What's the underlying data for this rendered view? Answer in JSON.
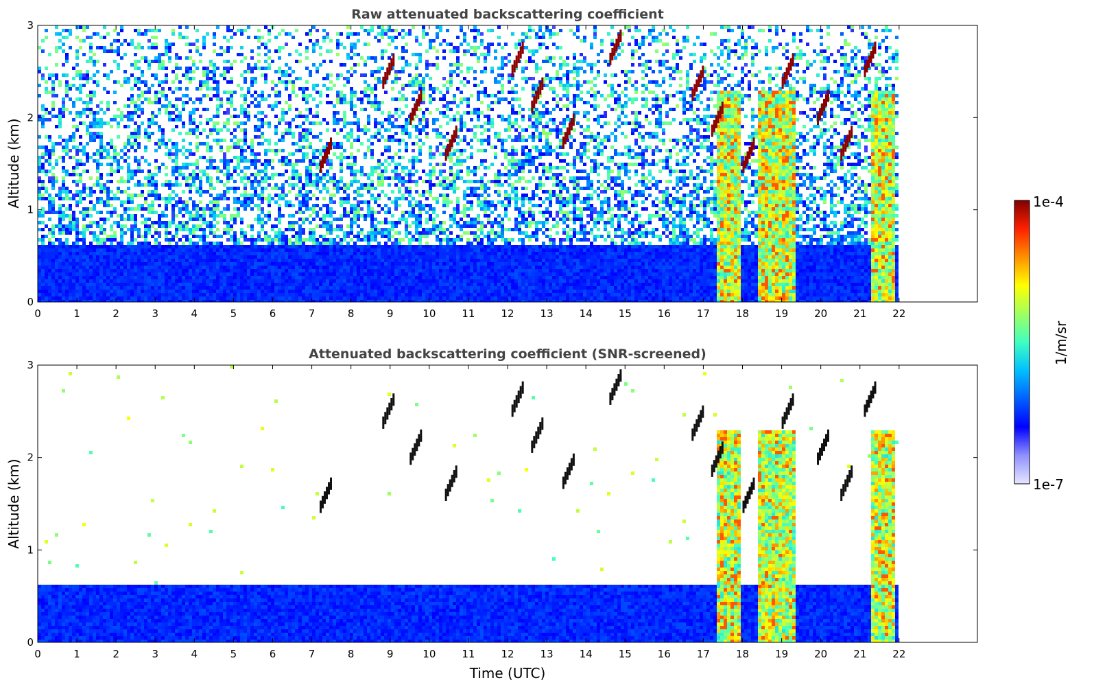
{
  "chart_data": [
    {
      "type": "heatmap",
      "title": "Raw attenuated backscattering coefficient",
      "xlabel": "",
      "ylabel": "Altitude (km)",
      "xlim": [
        0,
        24
      ],
      "ylim": [
        0,
        3
      ],
      "xticks": [
        "0",
        "1",
        "2",
        "3",
        "4",
        "5",
        "6",
        "7",
        "8",
        "9",
        "10",
        "11",
        "12",
        "13",
        "14",
        "15",
        "16",
        "17",
        "18",
        "19",
        "20",
        "21",
        "22"
      ],
      "yticks": [
        "0",
        "1",
        "2",
        "3"
      ],
      "data_end_hour": 21.9,
      "screened": false
    },
    {
      "type": "heatmap",
      "title": "Attenuated backscattering coefficient (SNR-screened)",
      "xlabel": "Time (UTC)",
      "ylabel": "Altitude (km)",
      "xlim": [
        0,
        24
      ],
      "ylim": [
        0,
        3
      ],
      "xticks": [
        "0",
        "1",
        "2",
        "3",
        "4",
        "5",
        "6",
        "7",
        "8",
        "9",
        "10",
        "11",
        "12",
        "13",
        "14",
        "15",
        "16",
        "17",
        "18",
        "19",
        "20",
        "21",
        "22"
      ],
      "yticks": [
        "0",
        "1",
        "2",
        "3"
      ],
      "data_end_hour": 21.9,
      "screened": true
    }
  ],
  "colorbar": {
    "min_label": "1e-7",
    "max_label": "1e-4",
    "unit": "1/m/sr",
    "scale": "log",
    "colors": [
      "#e6e6ff",
      "#9090ff",
      "#0000ff",
      "#0060ff",
      "#00c0ff",
      "#40ffc0",
      "#a0ff60",
      "#ffff00",
      "#ff9000",
      "#ff2000",
      "#800000"
    ]
  },
  "features": {
    "boundary_layer_top_km": 0.65,
    "thick_cloud_columns_hours": [
      [
        17.3,
        17.9
      ],
      [
        18.35,
        19.35
      ],
      [
        21.25,
        21.85
      ]
    ],
    "cloud_base_hours": [
      7.2,
      8.8,
      9.5,
      10.4,
      12.1,
      12.6,
      13.4,
      14.6,
      16.7,
      17.2,
      18.0,
      19.0,
      19.9,
      20.5,
      21.1
    ]
  }
}
